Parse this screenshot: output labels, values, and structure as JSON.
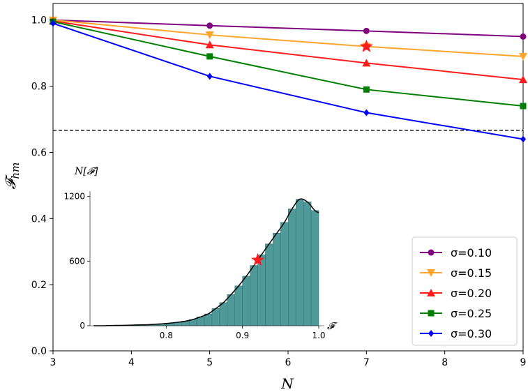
{
  "chart_data": [
    {
      "type": "line",
      "title": "",
      "xlabel": "N",
      "ylabel": "𝓕hm",
      "ylabel_main": "𝓕",
      "ylabel_sub": "hm",
      "x": [
        3,
        5,
        7,
        9
      ],
      "xlim": [
        3,
        9
      ],
      "ylim": [
        0.0,
        1.05
      ],
      "xticks": [
        "3",
        "4",
        "5",
        "6",
        "7",
        "8",
        "9"
      ],
      "yticks": [
        "0.0",
        "0.2",
        "0.4",
        "0.6",
        "0.8",
        "1.0"
      ],
      "grid": false,
      "legend_position": "lower-right",
      "series": [
        {
          "name": "σ=0.10",
          "values": [
            1.0,
            0.983,
            0.967,
            0.95
          ],
          "color": "#800080",
          "marker": "circle"
        },
        {
          "name": "σ=0.15",
          "values": [
            1.0,
            0.955,
            0.92,
            0.89
          ],
          "color": "#ffa52c",
          "marker": "triangle-down"
        },
        {
          "name": "σ=0.20",
          "values": [
            0.997,
            0.925,
            0.87,
            0.82
          ],
          "color": "#ff1c1c",
          "marker": "triangle-up"
        },
        {
          "name": "σ=0.25",
          "values": [
            0.995,
            0.89,
            0.79,
            0.74
          ],
          "color": "#008000",
          "marker": "square"
        },
        {
          "name": "σ=0.30",
          "values": [
            0.99,
            0.83,
            0.72,
            0.64
          ],
          "color": "#0000ff",
          "marker": "diamond"
        }
      ],
      "reference_line": {
        "y": 0.6667,
        "style": "dashed",
        "color": "#000000"
      },
      "highlight": {
        "x": 7,
        "y": 0.92,
        "marker": "star",
        "color": "#ff1c1c"
      }
    },
    {
      "type": "bar",
      "title": "",
      "xlabel": "𝓕",
      "ylabel": "N[𝓕]",
      "xlim": [
        0.7,
        1.0
      ],
      "ylim": [
        0,
        1250
      ],
      "xticks": [
        "0.8",
        "0.9",
        "1.0"
      ],
      "yticks": [
        "0",
        "600",
        "1200"
      ],
      "bin_width": 0.01,
      "bin_starts": [
        0.7,
        0.71,
        0.72,
        0.73,
        0.74,
        0.75,
        0.76,
        0.77,
        0.78,
        0.79,
        0.8,
        0.81,
        0.82,
        0.83,
        0.84,
        0.85,
        0.86,
        0.87,
        0.88,
        0.89,
        0.9,
        0.91,
        0.92,
        0.93,
        0.94,
        0.95,
        0.96,
        0.97,
        0.98,
        0.99
      ],
      "counts": [
        0,
        0,
        2,
        3,
        4,
        6,
        8,
        10,
        14,
        18,
        24,
        32,
        42,
        58,
        82,
        110,
        160,
        215,
        290,
        370,
        460,
        560,
        660,
        760,
        860,
        960,
        1085,
        1175,
        1150,
        1070
      ],
      "bar_color": "#4f9a99",
      "fit_curve_color": "#000000",
      "highlight": {
        "x": 0.92,
        "y": 610,
        "marker": "star",
        "color": "#ff1c1c"
      }
    }
  ]
}
